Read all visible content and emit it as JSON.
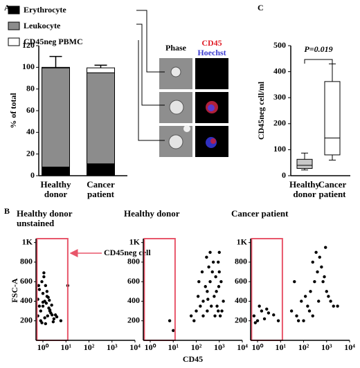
{
  "figure": {
    "panel_labels": [
      "A",
      "B",
      "C"
    ],
    "image_headers": [
      "Phase",
      "CD45",
      "Hoechst"
    ]
  },
  "chart_data": [
    {
      "type": "bar",
      "stacked": true,
      "ylabel": "% of total",
      "categories": [
        "Healthy donor",
        "Cancer patient"
      ],
      "series": [
        {
          "name": "Erythrocyte",
          "color": "#000000",
          "values": [
            8,
            11
          ],
          "errors": [
            12,
            1
          ]
        },
        {
          "name": "Leukocyte",
          "color": "#8c8c8c",
          "values": [
            91.5,
            84
          ]
        },
        {
          "name": "CD45neg PBMC",
          "color": "#ffffff",
          "values": [
            0.5,
            4.5
          ],
          "errors": [
            10,
            2.5
          ]
        }
      ],
      "ylim": [
        0,
        120
      ],
      "yticks": [
        0,
        20,
        40,
        60,
        80,
        100,
        120
      ]
    },
    {
      "type": "box",
      "ylabel": "CD45neg cell/ml",
      "annotation": "P=0.019",
      "categories": [
        "Healthy donor",
        "Cancer patient"
      ],
      "colors": [
        "#c8c8c8",
        "#ffffff"
      ],
      "min": [
        22,
        60
      ],
      "q1": [
        28,
        80
      ],
      "median": [
        40,
        145
      ],
      "q3": [
        63,
        362
      ],
      "max": [
        87,
        430
      ],
      "ylim": [
        0,
        500
      ],
      "yticks": [
        0,
        100,
        200,
        300,
        400,
        500
      ]
    },
    {
      "type": "scatter",
      "title": "Healthy donor unstained",
      "ylabel": "FSC-A",
      "annotation": "CD45neg cell",
      "color": "#000000",
      "gate_color": "#e8566a",
      "gate": [
        0.55,
        12
      ],
      "xscale": "log",
      "x": [
        0.6,
        0.8,
        1,
        1.2,
        1.5,
        2,
        2.5,
        3,
        0.7,
        0.9,
        1.1,
        1.4,
        1.8,
        2.2,
        0.6,
        1,
        1.3,
        1.7,
        2.4,
        3.5,
        0.8,
        1.2,
        1.6,
        2,
        0.7,
        1,
        1.5,
        4,
        6,
        0.9,
        1.3,
        2.8,
        1.1,
        0.65,
        1.9,
        12
      ],
      "values": [
        250,
        300,
        350,
        400,
        450,
        300,
        260,
        220,
        520,
        600,
        650,
        380,
        330,
        280,
        420,
        480,
        560,
        440,
        360,
        260,
        200,
        230,
        250,
        310,
        350,
        390,
        500,
        240,
        200,
        180,
        170,
        190,
        690,
        560,
        410,
        560
      ],
      "xlim": [
        0.5,
        10000
      ],
      "xticks": [
        {
          "value": 1,
          "label": "10⁰"
        },
        {
          "value": 10,
          "label": "10¹"
        },
        {
          "value": 100,
          "label": "10²"
        },
        {
          "value": 1000,
          "label": "10³"
        },
        {
          "value": 10000,
          "label": "10⁴"
        }
      ],
      "ylim": [
        0,
        1040
      ],
      "yticks": [
        200,
        400,
        600,
        800,
        {
          "value": 1000,
          "label": "1K"
        }
      ]
    },
    {
      "type": "scatter",
      "title": "Healthy donor",
      "xlabel": "CD45",
      "color": "#000000",
      "gate_color": "#e8566a",
      "gate": [
        0.55,
        12
      ],
      "xscale": "log",
      "x": [
        60,
        100,
        150,
        200,
        300,
        400,
        500,
        700,
        900,
        1200,
        80,
        120,
        250,
        350,
        600,
        800,
        1000,
        1500,
        200,
        300,
        450,
        650,
        900,
        1100,
        130,
        180,
        280,
        400,
        550,
        750,
        1000,
        320,
        950,
        1300,
        7,
        10
      ],
      "values": [
        250,
        300,
        350,
        400,
        500,
        600,
        700,
        650,
        800,
        600,
        200,
        450,
        550,
        750,
        450,
        350,
        900,
        400,
        250,
        300,
        350,
        250,
        300,
        250,
        600,
        700,
        850,
        900,
        800,
        500,
        700,
        420,
        550,
        300,
        200,
        100
      ],
      "xlim": [
        0.5,
        10000
      ],
      "xticks": [
        {
          "value": 1,
          "label": "10⁰"
        },
        {
          "value": 10,
          "label": "10¹"
        },
        {
          "value": 100,
          "label": "10²"
        },
        {
          "value": 1000,
          "label": "10³"
        },
        {
          "value": 10000,
          "label": "10⁴"
        }
      ],
      "ylim": [
        0,
        1040
      ],
      "yticks": [
        200,
        400,
        600,
        800,
        {
          "value": 1000,
          "label": "1K"
        }
      ]
    },
    {
      "type": "scatter",
      "title": "Cancer patient",
      "color": "#000000",
      "gate_color": "#e8566a",
      "gate": [
        0.55,
        12
      ],
      "xscale": "log",
      "x": [
        30,
        50,
        80,
        120,
        200,
        300,
        400,
        600,
        800,
        1000,
        1500,
        2000,
        100,
        150,
        250,
        350,
        500,
        700,
        900,
        60,
        180,
        450,
        1200,
        3000,
        0.7,
        1,
        1.5,
        2,
        3,
        5,
        8,
        1.2,
        0.8,
        2.5,
        40,
        250
      ],
      "values": [
        300,
        250,
        400,
        450,
        500,
        600,
        700,
        750,
        650,
        500,
        400,
        350,
        200,
        350,
        800,
        900,
        850,
        600,
        950,
        200,
        300,
        400,
        450,
        350,
        250,
        200,
        300,
        220,
        280,
        260,
        200,
        350,
        180,
        320,
        600,
        250
      ],
      "xlim": [
        0.5,
        10000
      ],
      "xticks": [
        {
          "value": 1,
          "label": "10⁰"
        },
        {
          "value": 10,
          "label": "10¹"
        },
        {
          "value": 100,
          "label": "10²"
        },
        {
          "value": 1000,
          "label": "10³"
        },
        {
          "value": 10000,
          "label": "10⁴"
        }
      ],
      "ylim": [
        0,
        1040
      ],
      "yticks": [
        200,
        400,
        600,
        800,
        {
          "value": 1000,
          "label": "1K"
        }
      ]
    }
  ]
}
